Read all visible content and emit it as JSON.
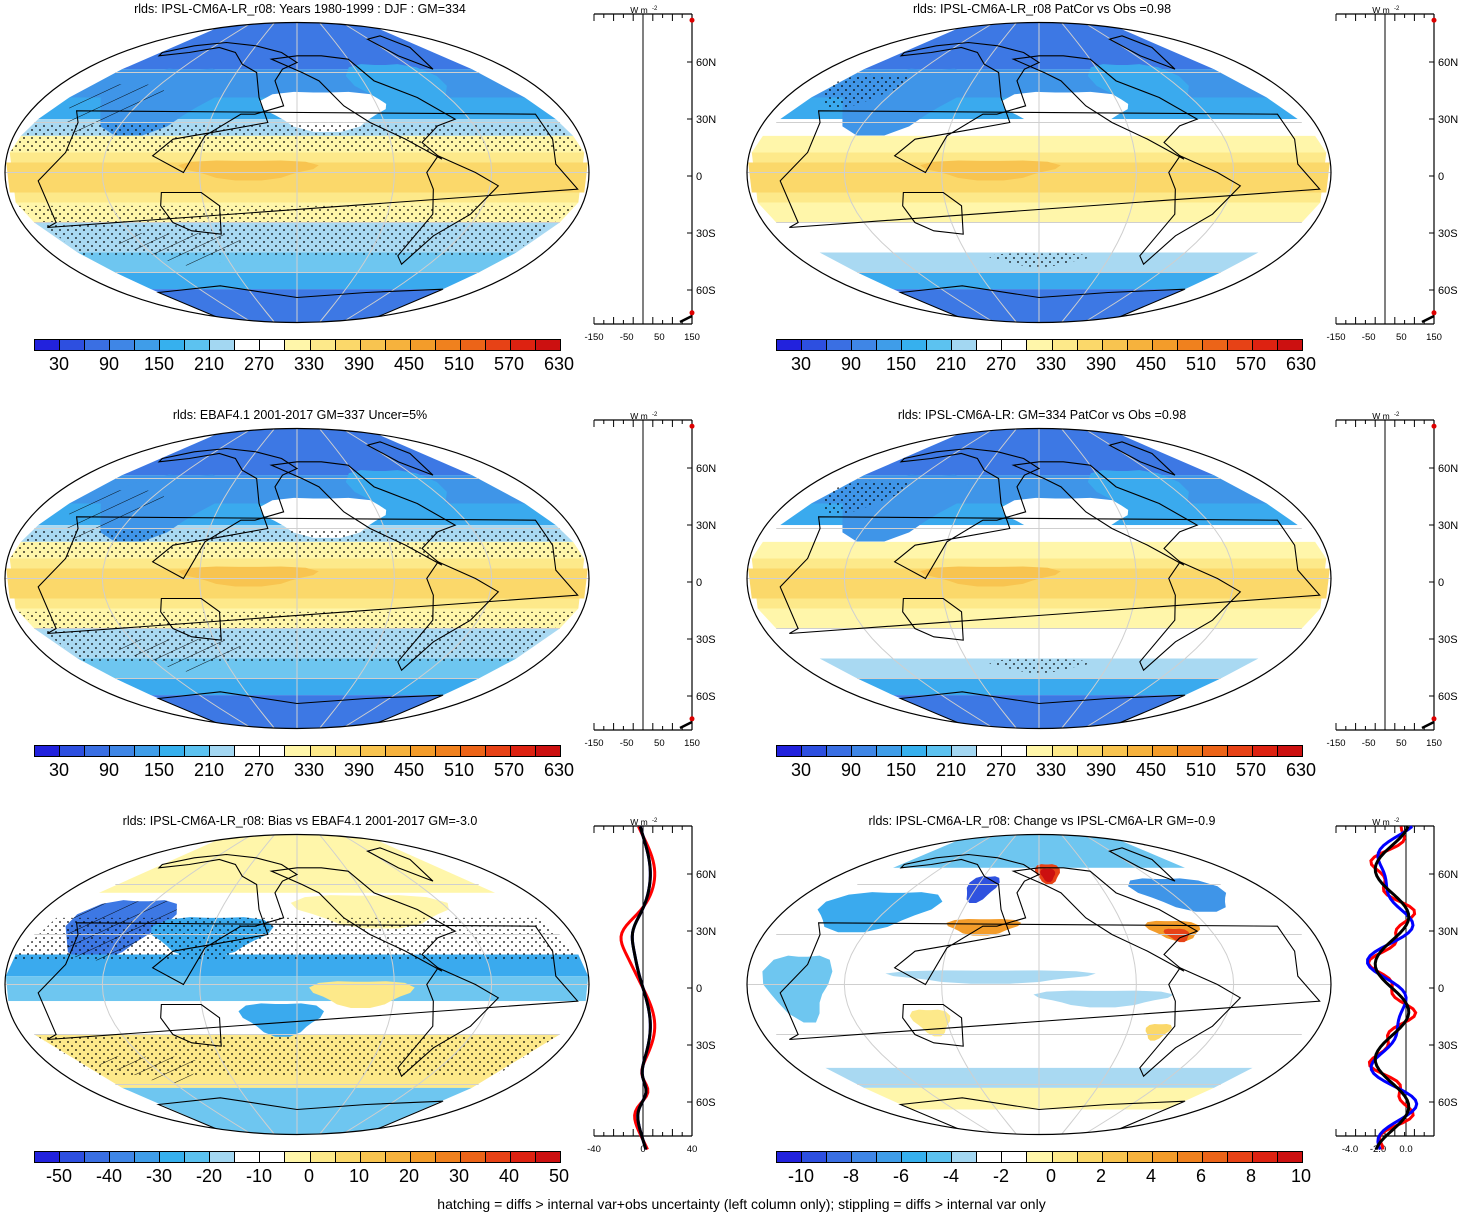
{
  "panels": [
    {
      "id": "p1",
      "title": "rlds: IPSL-CM6A-LR_r08: Years 1980-1999 : DJF : GM=334",
      "kind": "mean",
      "hatch": true,
      "colorbar": {
        "labels": [
          "30",
          "90",
          "150",
          "210",
          "270",
          "330",
          "390",
          "450",
          "510",
          "570",
          "630"
        ],
        "palette": "abs"
      },
      "zonal": {
        "xticks": [
          "-150",
          "-50",
          "50",
          "150"
        ],
        "xlim": [
          -150,
          150
        ]
      }
    },
    {
      "id": "p2",
      "title": "rlds: IPSL-CM6A-LR_r08 PatCor vs Obs =0.98",
      "kind": "mean2",
      "hatch": false,
      "colorbar": {
        "labels": [
          "30",
          "90",
          "150",
          "210",
          "270",
          "330",
          "390",
          "450",
          "510",
          "570",
          "630"
        ],
        "palette": "abs"
      },
      "zonal": {
        "xticks": [
          "-150",
          "-50",
          "50",
          "150"
        ],
        "xlim": [
          -150,
          150
        ]
      }
    },
    {
      "id": "p3",
      "title": "rlds: EBAF4.1 2001-2017 GM=337 Uncer=5%",
      "kind": "mean",
      "hatch": true,
      "colorbar": {
        "labels": [
          "30",
          "90",
          "150",
          "210",
          "270",
          "330",
          "390",
          "450",
          "510",
          "570",
          "630"
        ],
        "palette": "abs"
      },
      "zonal": {
        "xticks": [
          "-150",
          "-50",
          "50",
          "150"
        ],
        "xlim": [
          -150,
          150
        ]
      }
    },
    {
      "id": "p4",
      "title": "rlds: IPSL-CM6A-LR: GM=334 PatCor vs Obs =0.98",
      "kind": "mean2",
      "hatch": false,
      "colorbar": {
        "labels": [
          "30",
          "90",
          "150",
          "210",
          "270",
          "330",
          "390",
          "450",
          "510",
          "570",
          "630"
        ],
        "palette": "abs"
      },
      "zonal": {
        "xticks": [
          "-150",
          "-50",
          "50",
          "150"
        ],
        "xlim": [
          -150,
          150
        ]
      }
    },
    {
      "id": "p5",
      "title": "rlds: IPSL-CM6A-LR_r08: Bias vs EBAF4.1 2001-2017 GM=-3.0",
      "kind": "bias",
      "hatch": true,
      "colorbar": {
        "labels": [
          "-50",
          "-40",
          "-30",
          "-20",
          "-10",
          "0",
          "10",
          "20",
          "30",
          "40",
          "50"
        ],
        "palette": "diff"
      },
      "zonal": {
        "xticks": [
          "-40",
          "0",
          "40"
        ],
        "xlim": [
          -40,
          40
        ]
      }
    },
    {
      "id": "p6",
      "title": "rlds: IPSL-CM6A-LR_r08: Change vs IPSL-CM6A-LR GM=-0.9",
      "kind": "change",
      "hatch": false,
      "colorbar": {
        "labels": [
          "-10",
          "-8",
          "-6",
          "-4",
          "-2",
          "0",
          "2",
          "4",
          "6",
          "8",
          "10"
        ],
        "palette": "diff"
      },
      "zonal": {
        "xticks": [
          "-4.0",
          "-2.0",
          "0.0"
        ],
        "xlim": [
          -5,
          2
        ]
      }
    }
  ],
  "lat_labels": [
    "60N",
    "30N",
    "0",
    "30S",
    "60S"
  ],
  "units": "W m",
  "units_exp": "-2",
  "palettes": {
    "abs": [
      "#2222dd",
      "#2d4fe0",
      "#3a6fe3",
      "#3f86e6",
      "#3f9de9",
      "#36b0ee",
      "#5cc2f0",
      "#a3d7f2",
      "#ffffff",
      "#ffffff",
      "#fff6aa",
      "#fde98a",
      "#fbd86a",
      "#f8c450",
      "#f6b23d",
      "#f39c2a",
      "#f0811e",
      "#ec6418",
      "#e74216",
      "#dd2211",
      "#cc1010"
    ],
    "diff": [
      "#2222dd",
      "#2d4fe0",
      "#3a6fe3",
      "#3f86e6",
      "#3f9de9",
      "#36b0ee",
      "#5cc2f0",
      "#a3d7f2",
      "#ffffff",
      "#ffffff",
      "#fff6aa",
      "#fde98a",
      "#fbd86a",
      "#f8c450",
      "#f6b23d",
      "#f39c2a",
      "#f0811e",
      "#ec6418",
      "#e74216",
      "#dd2211",
      "#cc1010"
    ]
  },
  "footnote": "hatching = diffs > internal var+obs uncertainty (left column only); stippling = diffs > internal var only"
}
